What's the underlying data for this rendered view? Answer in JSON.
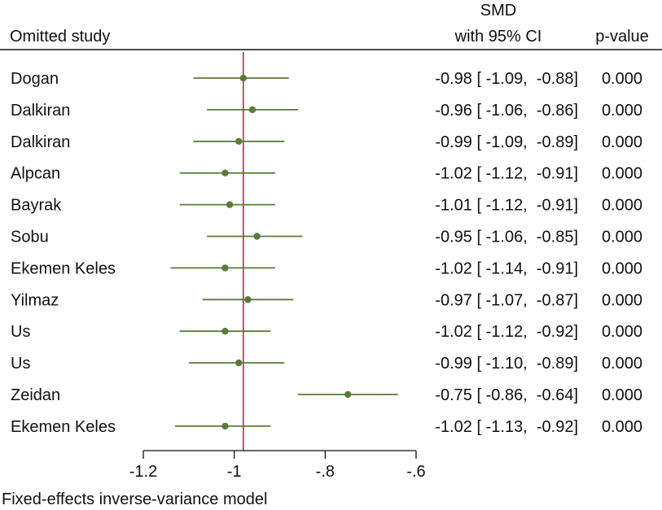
{
  "chart_data": {
    "type": "forest",
    "columns": {
      "study": "Omitted study",
      "effect_line1": "SMD",
      "effect_line2": "with 95% CI",
      "pvalue": "p-value"
    },
    "rows": [
      {
        "study": "Dogan",
        "est": -0.98,
        "lo": -1.09,
        "hi": -0.88,
        "ci_text": "-0.98 [ -1.09,  -0.88]",
        "p": "0.000"
      },
      {
        "study": "Dalkiran",
        "est": -0.96,
        "lo": -1.06,
        "hi": -0.86,
        "ci_text": "-0.96 [ -1.06,  -0.86]",
        "p": "0.000"
      },
      {
        "study": "Dalkiran",
        "est": -0.99,
        "lo": -1.09,
        "hi": -0.89,
        "ci_text": "-0.99 [ -1.09,  -0.89]",
        "p": "0.000"
      },
      {
        "study": "Alpcan",
        "est": -1.02,
        "lo": -1.12,
        "hi": -0.91,
        "ci_text": "-1.02 [ -1.12,  -0.91]",
        "p": "0.000"
      },
      {
        "study": "Bayrak",
        "est": -1.01,
        "lo": -1.12,
        "hi": -0.91,
        "ci_text": "-1.01 [ -1.12,  -0.91]",
        "p": "0.000"
      },
      {
        "study": "Sobu",
        "est": -0.95,
        "lo": -1.06,
        "hi": -0.85,
        "ci_text": "-0.95 [ -1.06,  -0.85]",
        "p": "0.000"
      },
      {
        "study": "Ekemen Keles",
        "est": -1.02,
        "lo": -1.14,
        "hi": -0.91,
        "ci_text": "-1.02 [ -1.14,  -0.91]",
        "p": "0.000"
      },
      {
        "study": "Yilmaz",
        "est": -0.97,
        "lo": -1.07,
        "hi": -0.87,
        "ci_text": "-0.97 [ -1.07,  -0.87]",
        "p": "0.000"
      },
      {
        "study": "Us",
        "est": -1.02,
        "lo": -1.12,
        "hi": -0.92,
        "ci_text": "-1.02 [ -1.12,  -0.92]",
        "p": "0.000"
      },
      {
        "study": "Us",
        "est": -0.99,
        "lo": -1.1,
        "hi": -0.89,
        "ci_text": "-0.99 [ -1.10,  -0.89]",
        "p": "0.000"
      },
      {
        "study": "Zeidan",
        "est": -0.75,
        "lo": -0.86,
        "hi": -0.64,
        "ci_text": "-0.75 [ -0.86,  -0.64]",
        "p": "0.000"
      },
      {
        "study": "Ekemen Keles",
        "est": -1.02,
        "lo": -1.13,
        "hi": -0.92,
        "ci_text": "-1.02 [ -1.13,  -0.92]",
        "p": "0.000"
      }
    ],
    "reference_value": -0.98,
    "xlim": [
      -1.2,
      -0.6
    ],
    "xticks": [
      -1.2,
      -1.0,
      -0.8,
      -0.6
    ],
    "xtick_labels": [
      "-1.2",
      "-1",
      "-.8",
      "-.6"
    ],
    "footnote": "Fixed-effects inverse-variance model",
    "colors": {
      "marker": "#5a7a3a",
      "ci_line": "#5a7a3a",
      "reference_line": "#b22234",
      "text": "#111111",
      "rule": "#111111"
    }
  }
}
